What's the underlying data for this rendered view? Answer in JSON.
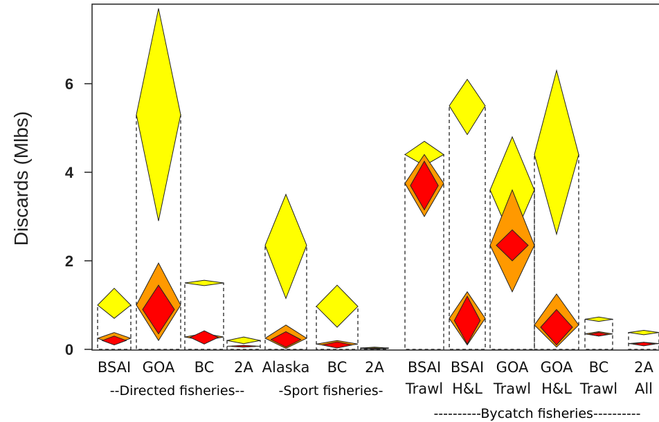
{
  "chart_data": {
    "type": "diamond-interval",
    "title": "",
    "ylabel": "Discards (Mlbs)",
    "ylim": [
      0,
      7.8
    ],
    "yticks": [
      0,
      2,
      4,
      6
    ],
    "grid": false,
    "colors": {
      "yellow": "#ffff00",
      "orange": "#ff9900",
      "red": "#ff0000",
      "black": "#111111"
    },
    "categories": [
      {
        "lines": [
          "BSAI",
          ""
        ]
      },
      {
        "lines": [
          "GOA",
          ""
        ]
      },
      {
        "lines": [
          "BC",
          ""
        ]
      },
      {
        "lines": [
          "2A",
          ""
        ]
      },
      {
        "lines": [
          "Alaska",
          ""
        ]
      },
      {
        "lines": [
          "BC",
          ""
        ]
      },
      {
        "lines": [
          "2A",
          ""
        ]
      },
      {
        "lines": [
          "BSAI",
          "Trawl"
        ]
      },
      {
        "lines": [
          "BSAI",
          "H&L"
        ]
      },
      {
        "lines": [
          "GOA",
          "Trawl"
        ]
      },
      {
        "lines": [
          "GOA",
          "H&L"
        ]
      },
      {
        "lines": [
          "BC",
          "Trawl"
        ]
      },
      {
        "lines": [
          "2A",
          "All"
        ]
      }
    ],
    "series": [
      {
        "color": "yellow",
        "mid": [
          1.0,
          5.3,
          1.5,
          0.2,
          2.35,
          0.97,
          0.03,
          4.4,
          5.5,
          3.6,
          4.4,
          0.68,
          0.38
        ],
        "low": [
          0.7,
          2.9,
          1.44,
          0.13,
          1.15,
          0.5,
          0.01,
          4.15,
          4.85,
          2.45,
          2.6,
          0.63,
          0.33
        ],
        "high": [
          1.38,
          7.7,
          1.56,
          0.28,
          3.5,
          1.45,
          0.05,
          4.7,
          6.1,
          4.8,
          6.3,
          0.73,
          0.43
        ]
      },
      {
        "color": "orange",
        "mid": [
          0.25,
          1.0,
          0.28,
          0.07,
          0.25,
          0.12,
          0.02,
          3.75,
          0.7,
          2.35,
          0.55,
          0.35,
          0.13
        ],
        "low": [
          0.12,
          0.2,
          0.2,
          0.05,
          0.02,
          0.05,
          0.01,
          3.0,
          0.1,
          1.3,
          0.05,
          0.3,
          0.1
        ],
        "high": [
          0.38,
          1.95,
          0.36,
          0.09,
          0.55,
          0.2,
          0.03,
          4.4,
          1.3,
          3.6,
          1.25,
          0.4,
          0.16
        ]
      },
      {
        "color": "red",
        "mid": [
          0.2,
          0.9,
          0.27,
          0.07,
          0.22,
          0.1,
          0.02,
          3.7,
          0.65,
          2.35,
          0.5,
          0.34,
          0.12
        ],
        "low": [
          0.1,
          0.35,
          0.12,
          0.05,
          0.05,
          0.03,
          0.01,
          3.15,
          0.12,
          2.0,
          0.1,
          0.3,
          0.08
        ],
        "high": [
          0.3,
          1.45,
          0.42,
          0.09,
          0.4,
          0.17,
          0.03,
          4.25,
          1.2,
          2.7,
          0.9,
          0.38,
          0.16
        ]
      }
    ],
    "groups": [
      {
        "label": "--Directed fisheries--",
        "color": "#1a9b1a"
      },
      {
        "label": "-Sport fisheries-",
        "color": "#1e78e6"
      },
      {
        "label": "----------Bycatch fisheries----------",
        "color": "#8a2fb8"
      }
    ]
  }
}
